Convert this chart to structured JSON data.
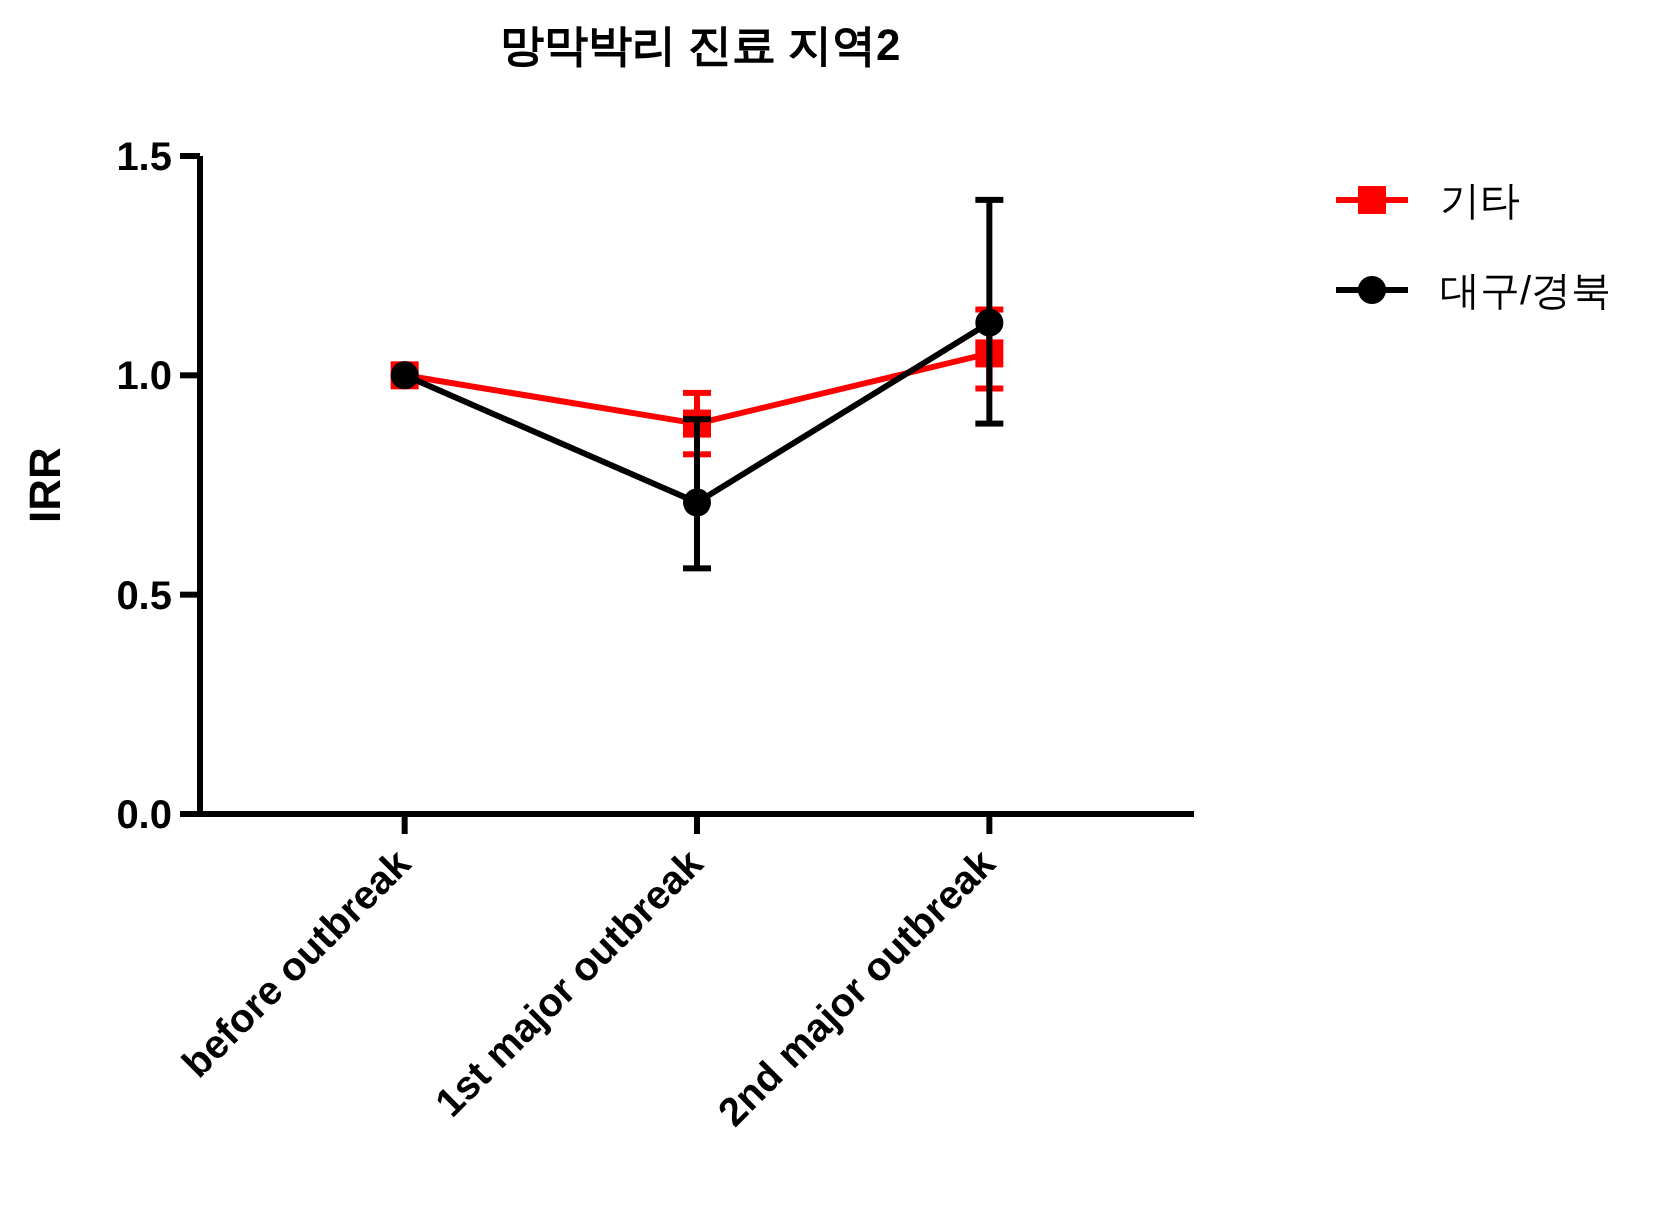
{
  "chart_data": {
    "type": "line",
    "title": "망막박리 진료 지역2",
    "ylabel": "IRR",
    "categories": [
      "before outbreak",
      "1st major outbreak",
      "2nd major outbreak"
    ],
    "series": [
      {
        "name": "기타",
        "color": "#ff0000",
        "marker": "square",
        "values": [
          1.0,
          0.89,
          1.05
        ],
        "errors": [
          null,
          [
            0.82,
            0.96
          ],
          [
            0.97,
            1.15
          ]
        ]
      },
      {
        "name": "대구/경북",
        "color": "#000000",
        "marker": "circle",
        "values": [
          1.0,
          0.71,
          1.12
        ],
        "errors": [
          null,
          [
            0.56,
            0.9
          ],
          [
            0.89,
            1.4
          ]
        ]
      }
    ],
    "ylim": [
      0,
      1.5
    ],
    "yticks": [
      {
        "value": 0,
        "label": "0.0"
      },
      0.5,
      {
        "value": 1,
        "label": "1.0"
      },
      1.5
    ],
    "grid": false,
    "legend": "top right"
  }
}
